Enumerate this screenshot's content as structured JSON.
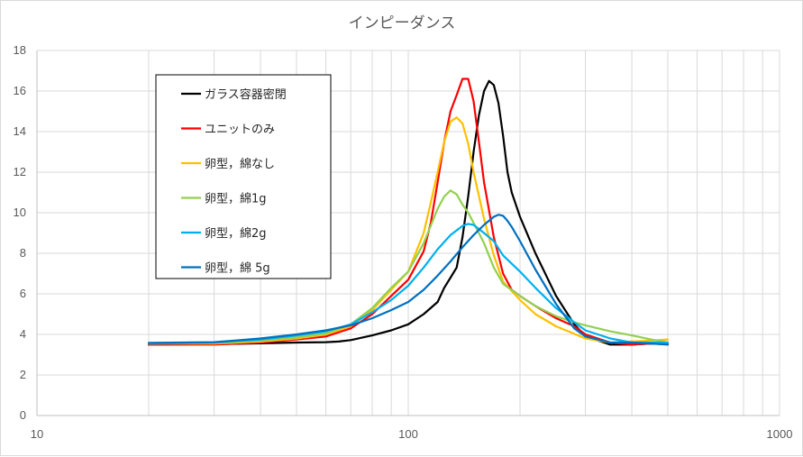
{
  "chart_data": {
    "type": "line",
    "title": "インピーダンス",
    "x_scale": "log",
    "xlim": [
      10,
      1000
    ],
    "ylim": [
      0,
      18
    ],
    "x_ticks": [
      10,
      100,
      1000
    ],
    "x_tick_labels": [
      "10",
      "100",
      "1000"
    ],
    "y_ticks": [
      0,
      2,
      4,
      6,
      8,
      10,
      12,
      14,
      16,
      18
    ],
    "y_tick_labels": [
      "0",
      "2",
      "4",
      "6",
      "8",
      "10",
      "12",
      "14",
      "16",
      "18"
    ],
    "grid": true,
    "legend_position": "top-left",
    "series": [
      {
        "name": "ガラス容器密閉",
        "color": "#000000",
        "x": [
          20,
          30,
          40,
          50,
          60,
          65,
          70,
          80,
          90,
          100,
          110,
          120,
          125,
          130,
          135,
          140,
          145,
          150,
          155,
          160,
          165,
          170,
          175,
          180,
          185,
          190,
          200,
          220,
          250,
          280,
          300,
          350,
          400,
          450,
          500
        ],
        "y": [
          3.5,
          3.52,
          3.56,
          3.6,
          3.62,
          3.65,
          3.72,
          3.95,
          4.2,
          4.5,
          5.0,
          5.6,
          6.3,
          6.8,
          7.3,
          8.8,
          10.8,
          13.0,
          14.8,
          16.0,
          16.5,
          16.3,
          15.4,
          13.8,
          12.0,
          11.0,
          9.8,
          8.0,
          5.9,
          4.5,
          3.9,
          3.5,
          3.5,
          3.55,
          3.52
        ]
      },
      {
        "name": "ユニットのみ",
        "color": "#ff0000",
        "x": [
          20,
          30,
          40,
          50,
          60,
          70,
          80,
          90,
          100,
          110,
          115,
          120,
          125,
          130,
          135,
          140,
          145,
          150,
          155,
          160,
          170,
          180,
          190,
          200,
          220,
          250,
          280,
          300,
          350,
          400,
          450,
          500
        ],
        "y": [
          3.5,
          3.5,
          3.6,
          3.75,
          3.9,
          4.3,
          5.0,
          5.9,
          6.7,
          8.1,
          9.5,
          11.5,
          13.5,
          15.0,
          15.8,
          16.6,
          16.6,
          15.5,
          13.5,
          11.5,
          8.8,
          7.0,
          6.2,
          5.9,
          5.4,
          4.8,
          4.4,
          4.0,
          3.6,
          3.5,
          3.55,
          3.52
        ]
      },
      {
        "name": "卵型，綿なし",
        "color": "#ffc000",
        "x": [
          20,
          30,
          40,
          50,
          60,
          70,
          80,
          90,
          100,
          110,
          115,
          120,
          125,
          130,
          135,
          140,
          145,
          150,
          160,
          170,
          180,
          200,
          220,
          250,
          300,
          350,
          400,
          450,
          500
        ],
        "y": [
          3.55,
          3.55,
          3.65,
          3.8,
          4.0,
          4.4,
          5.2,
          6.2,
          7.1,
          9.0,
          10.5,
          12.0,
          13.5,
          14.5,
          14.7,
          14.4,
          13.4,
          12.0,
          9.7,
          7.9,
          6.6,
          5.7,
          5.0,
          4.4,
          3.8,
          3.6,
          3.65,
          3.7,
          3.75
        ]
      },
      {
        "name": "卵型，綿1g",
        "color": "#92d050",
        "x": [
          20,
          30,
          40,
          50,
          60,
          70,
          80,
          90,
          100,
          110,
          120,
          125,
          130,
          135,
          140,
          145,
          150,
          160,
          170,
          180,
          200,
          220,
          250,
          280,
          300,
          350,
          400,
          450,
          500
        ],
        "y": [
          3.55,
          3.6,
          3.7,
          3.85,
          4.05,
          4.5,
          5.3,
          6.3,
          7.1,
          8.5,
          10.2,
          10.8,
          11.1,
          10.9,
          10.4,
          10.0,
          9.5,
          8.5,
          7.3,
          6.5,
          5.9,
          5.4,
          4.9,
          4.6,
          4.45,
          4.15,
          3.95,
          3.75,
          3.6
        ]
      },
      {
        "name": "卵型，綿2g",
        "color": "#00b0f0",
        "x": [
          20,
          30,
          40,
          50,
          60,
          70,
          80,
          90,
          100,
          110,
          120,
          130,
          140,
          145,
          150,
          160,
          170,
          180,
          200,
          220,
          250,
          280,
          300,
          350,
          400,
          450,
          500
        ],
        "y": [
          3.55,
          3.6,
          3.75,
          3.95,
          4.15,
          4.5,
          5.1,
          5.7,
          6.4,
          7.3,
          8.2,
          8.9,
          9.35,
          9.45,
          9.4,
          9.0,
          8.6,
          7.9,
          7.1,
          6.3,
          5.3,
          4.6,
          4.2,
          3.8,
          3.6,
          3.6,
          3.6
        ]
      },
      {
        "name": "卵型，綿 5g",
        "color": "#0070c0",
        "x": [
          20,
          30,
          40,
          50,
          60,
          70,
          80,
          90,
          100,
          110,
          120,
          130,
          140,
          150,
          160,
          170,
          175,
          180,
          185,
          190,
          200,
          220,
          250,
          280,
          300,
          350,
          400,
          450,
          500
        ],
        "y": [
          3.58,
          3.62,
          3.8,
          4.0,
          4.2,
          4.45,
          4.8,
          5.2,
          5.6,
          6.2,
          6.9,
          7.6,
          8.3,
          8.9,
          9.4,
          9.8,
          9.9,
          9.85,
          9.6,
          9.3,
          8.6,
          7.2,
          5.5,
          4.3,
          3.9,
          3.6,
          3.6,
          3.55,
          3.5
        ]
      }
    ]
  }
}
